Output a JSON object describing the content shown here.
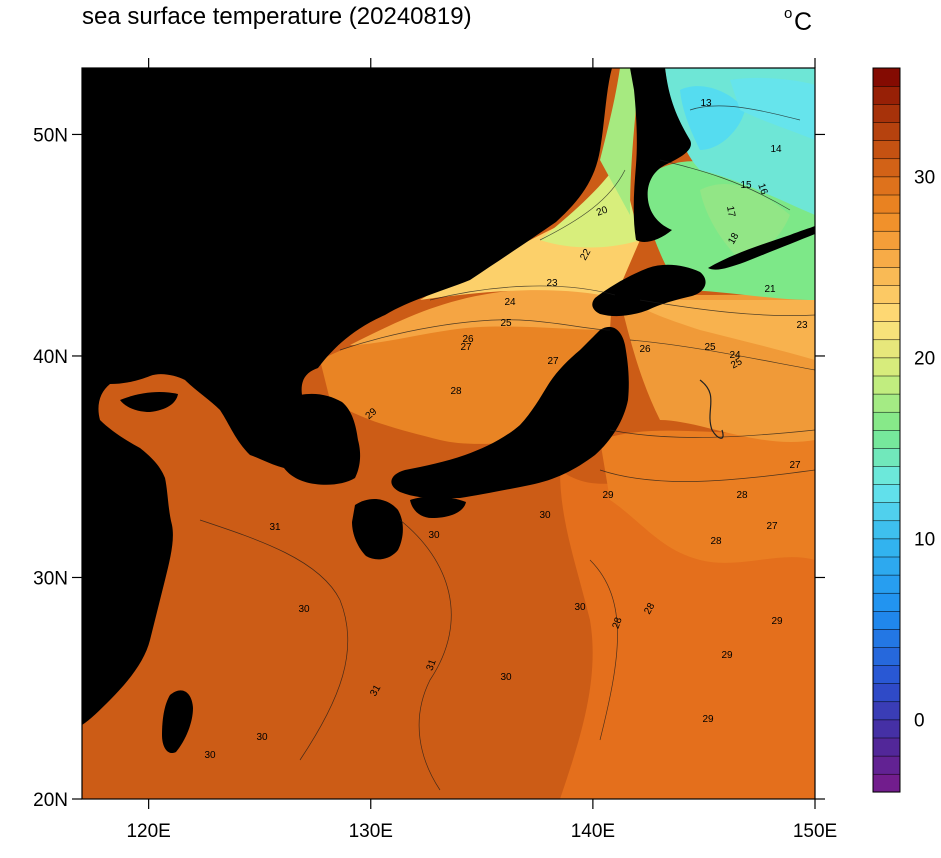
{
  "title": "sea surface temperature (20240819)",
  "units": "°C",
  "units_deg": "o",
  "units_letter": "C",
  "lon_ticks": [
    {
      "value": 120,
      "label": "120E"
    },
    {
      "value": 130,
      "label": "130E"
    },
    {
      "value": 140,
      "label": "140E"
    },
    {
      "value": 150,
      "label": "150E"
    }
  ],
  "lat_ticks": [
    {
      "value": 20,
      "label": "20N"
    },
    {
      "value": 30,
      "label": "30N"
    },
    {
      "value": 40,
      "label": "40N"
    },
    {
      "value": 50,
      "label": "50N"
    }
  ],
  "lon_range": [
    117,
    150
  ],
  "lat_range": [
    20,
    53
  ],
  "colorbar": {
    "min": -4,
    "max": 36,
    "step": 1,
    "ticks": [
      {
        "value": 0,
        "label": "0"
      },
      {
        "value": 10,
        "label": "10"
      },
      {
        "value": 20,
        "label": "20"
      },
      {
        "value": 30,
        "label": "30"
      }
    ],
    "stops": [
      {
        "v": -4,
        "c": "#7a1a8a"
      },
      {
        "v": -1,
        "c": "#4a2a9c"
      },
      {
        "v": 2,
        "c": "#2a50d0"
      },
      {
        "v": 6,
        "c": "#1f8ff0"
      },
      {
        "v": 10,
        "c": "#35b8ef"
      },
      {
        "v": 13,
        "c": "#6ae8ea"
      },
      {
        "v": 16,
        "c": "#78e88c"
      },
      {
        "v": 19,
        "c": "#cfee7c"
      },
      {
        "v": 22,
        "c": "#ffe07a"
      },
      {
        "v": 25,
        "c": "#f8b24e"
      },
      {
        "v": 28,
        "c": "#ef8a24"
      },
      {
        "v": 31,
        "c": "#cc5a14"
      },
      {
        "v": 34,
        "c": "#a02a08"
      },
      {
        "v": 36,
        "c": "#7a0000"
      }
    ]
  },
  "land_color": "#000000",
  "contour_labels": [
    {
      "text": "13"
    },
    {
      "text": "14"
    },
    {
      "text": "15"
    },
    {
      "text": "16"
    },
    {
      "text": "17"
    },
    {
      "text": "18"
    },
    {
      "text": "20"
    },
    {
      "text": "21"
    },
    {
      "text": "22"
    },
    {
      "text": "23"
    },
    {
      "text": "23"
    },
    {
      "text": "24"
    },
    {
      "text": "24"
    },
    {
      "text": "25"
    },
    {
      "text": "25"
    },
    {
      "text": "25"
    },
    {
      "text": "26"
    },
    {
      "text": "26"
    },
    {
      "text": "27"
    },
    {
      "text": "27"
    },
    {
      "text": "27"
    },
    {
      "text": "27"
    },
    {
      "text": "28"
    },
    {
      "text": "28"
    },
    {
      "text": "28"
    },
    {
      "text": "28"
    },
    {
      "text": "28"
    },
    {
      "text": "29"
    },
    {
      "text": "29"
    },
    {
      "text": "29"
    },
    {
      "text": "29"
    },
    {
      "text": "29"
    },
    {
      "text": "30"
    },
    {
      "text": "30"
    },
    {
      "text": "30"
    },
    {
      "text": "30"
    },
    {
      "text": "30"
    },
    {
      "text": "30"
    },
    {
      "text": "30"
    },
    {
      "text": "31"
    },
    {
      "text": "31"
    },
    {
      "text": "31"
    }
  ]
}
